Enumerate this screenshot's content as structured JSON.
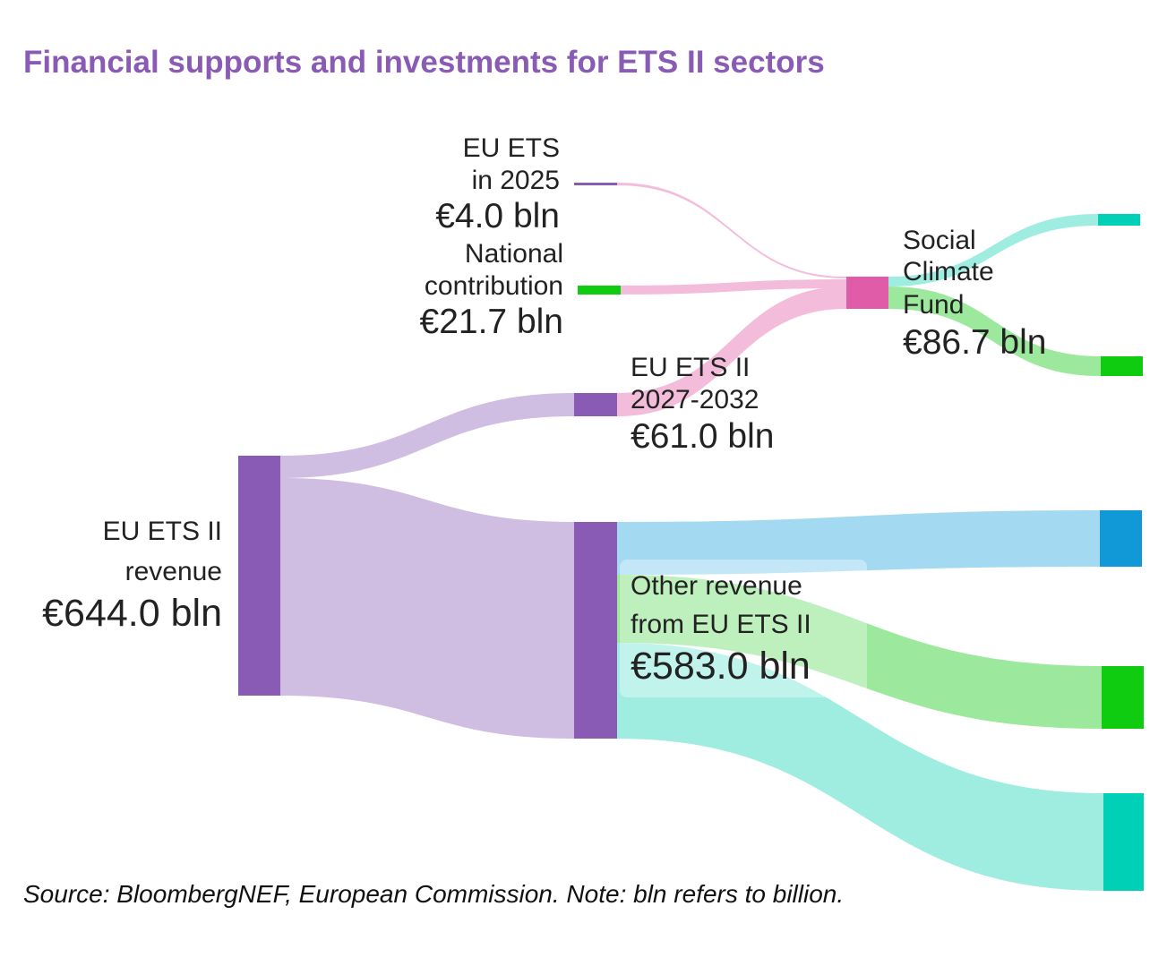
{
  "title": "Financial supports and investments for ETS II sectors",
  "source_note": "Source: BloombergNEF, European Commission. Note: bln refers to billion.",
  "colors": {
    "title": "#8a5bb5",
    "purple_node": "#8a5bb5",
    "purple_link": "#cfbde2",
    "pink_node": "#e05ca8",
    "pink_link": "#f4bcdb",
    "blue_node": "#1198d6",
    "blue_link": "#a3daf2",
    "green_node": "#10cc10",
    "green_link": "#9ce89c",
    "teal_node": "#00d1b6",
    "teal_link": "#9fede1"
  },
  "chart_data": {
    "type": "sankey",
    "title": "Financial supports and investments for ETS II sectors",
    "unit": "bln",
    "nodes": [
      {
        "id": "revenue",
        "name_lines": [
          "EU ETS II",
          "revenue"
        ],
        "value_label": "€644.0 bln",
        "value": 644.0
      },
      {
        "id": "ets2_2027",
        "name_lines": [
          "EU ETS II",
          "2027-2032"
        ],
        "value_label": "€61.0 bln",
        "value": 61.0
      },
      {
        "id": "other_revenue",
        "name_lines": [
          "Other revenue",
          "from EU ETS II"
        ],
        "value_label": "€583.0 bln",
        "value": 583.0
      },
      {
        "id": "ets_2025",
        "name_lines": [
          "EU ETS",
          "in 2025"
        ],
        "value_label": "€4.0 bln",
        "value": 4.0
      },
      {
        "id": "national",
        "name_lines": [
          "National",
          "contribution"
        ],
        "value_label": "€21.7 bln",
        "value": 21.7
      },
      {
        "id": "scf",
        "name_lines": [
          "Social",
          "Climate",
          "Fund"
        ],
        "value_label": "€86.7 bln",
        "value": 86.7
      },
      {
        "id": "scf_out_1",
        "name_lines": [],
        "value_label": "",
        "value": 15
      },
      {
        "id": "scf_out_2",
        "name_lines": [],
        "value_label": "",
        "value": 71.7
      },
      {
        "id": "other_out_1",
        "name_lines": [],
        "value_label": "",
        "value": 150
      },
      {
        "id": "other_out_2",
        "name_lines": [],
        "value_label": "",
        "value": 170
      },
      {
        "id": "other_out_3",
        "name_lines": [],
        "value_label": "",
        "value": 263
      }
    ],
    "links": [
      {
        "source": "revenue",
        "target": "ets2_2027",
        "value": 61.0
      },
      {
        "source": "revenue",
        "target": "other_revenue",
        "value": 583.0
      },
      {
        "source": "ets_2025",
        "target": "scf",
        "value": 4.0
      },
      {
        "source": "national",
        "target": "scf",
        "value": 21.7
      },
      {
        "source": "ets2_2027",
        "target": "scf",
        "value": 61.0
      },
      {
        "source": "scf",
        "target": "scf_out_1",
        "value": 15
      },
      {
        "source": "scf",
        "target": "scf_out_2",
        "value": 71.7
      },
      {
        "source": "other_revenue",
        "target": "other_out_1",
        "value": 150
      },
      {
        "source": "other_revenue",
        "target": "other_out_2",
        "value": 170
      },
      {
        "source": "other_revenue",
        "target": "other_out_3",
        "value": 263
      }
    ]
  }
}
